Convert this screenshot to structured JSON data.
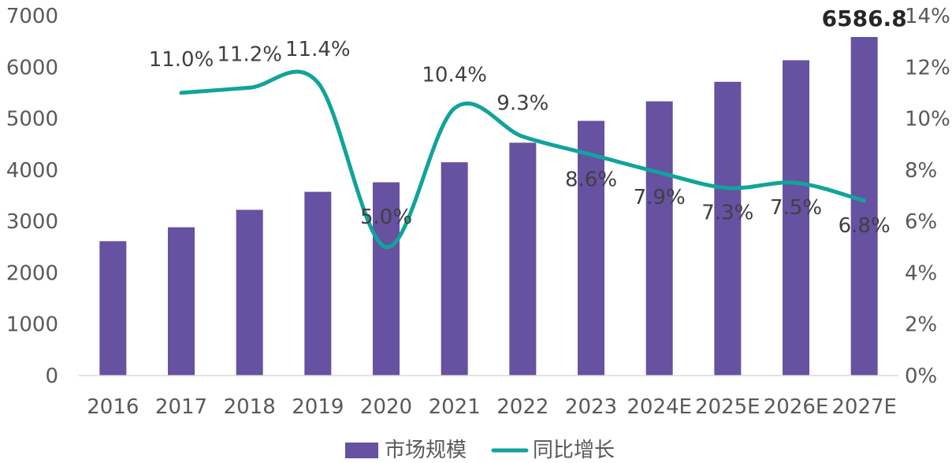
{
  "chart_data": {
    "type": "bar",
    "categories": [
      "2016",
      "2017",
      "2018",
      "2019",
      "2020",
      "2021",
      "2022",
      "2023",
      "2024E",
      "2025E",
      "2026E",
      "2027E"
    ],
    "series": [
      {
        "name": "市场规模",
        "type": "bar",
        "axis": "left",
        "color": "#6751A1",
        "values": [
          2615,
          2885,
          3225,
          3575,
          3760,
          4150,
          4530,
          4955,
          5335,
          5715,
          6135,
          6586.8
        ],
        "labels": [
          "",
          "",
          "",
          "",
          "",
          "",
          "",
          "",
          "",
          "",
          "",
          "6586.8"
        ]
      },
      {
        "name": "同比增长",
        "type": "line",
        "axis": "right",
        "color": "#11A39C",
        "values": [
          null,
          11.0,
          11.2,
          11.4,
          5.0,
          10.4,
          9.3,
          8.6,
          7.9,
          7.3,
          7.5,
          6.8
        ],
        "labels": [
          "",
          "11.0%",
          "11.2%",
          "11.4%",
          "5.0%",
          "10.4%",
          "9.3%",
          "8.6%",
          "7.9%",
          "7.3%",
          "7.5%",
          "6.8%"
        ]
      }
    ],
    "y_left": {
      "min": 0,
      "max": 7000,
      "ticks": [
        "0",
        "1000",
        "2000",
        "3000",
        "4000",
        "5000",
        "6000",
        "7000"
      ]
    },
    "y_right": {
      "min": 0,
      "max": 14,
      "ticks": [
        "0%",
        "2%",
        "4%",
        "6%",
        "8%",
        "10%",
        "12%",
        "14%"
      ]
    },
    "legend": [
      "市场规模",
      "同比增长"
    ],
    "legend_position": "bottom",
    "grid": false
  }
}
